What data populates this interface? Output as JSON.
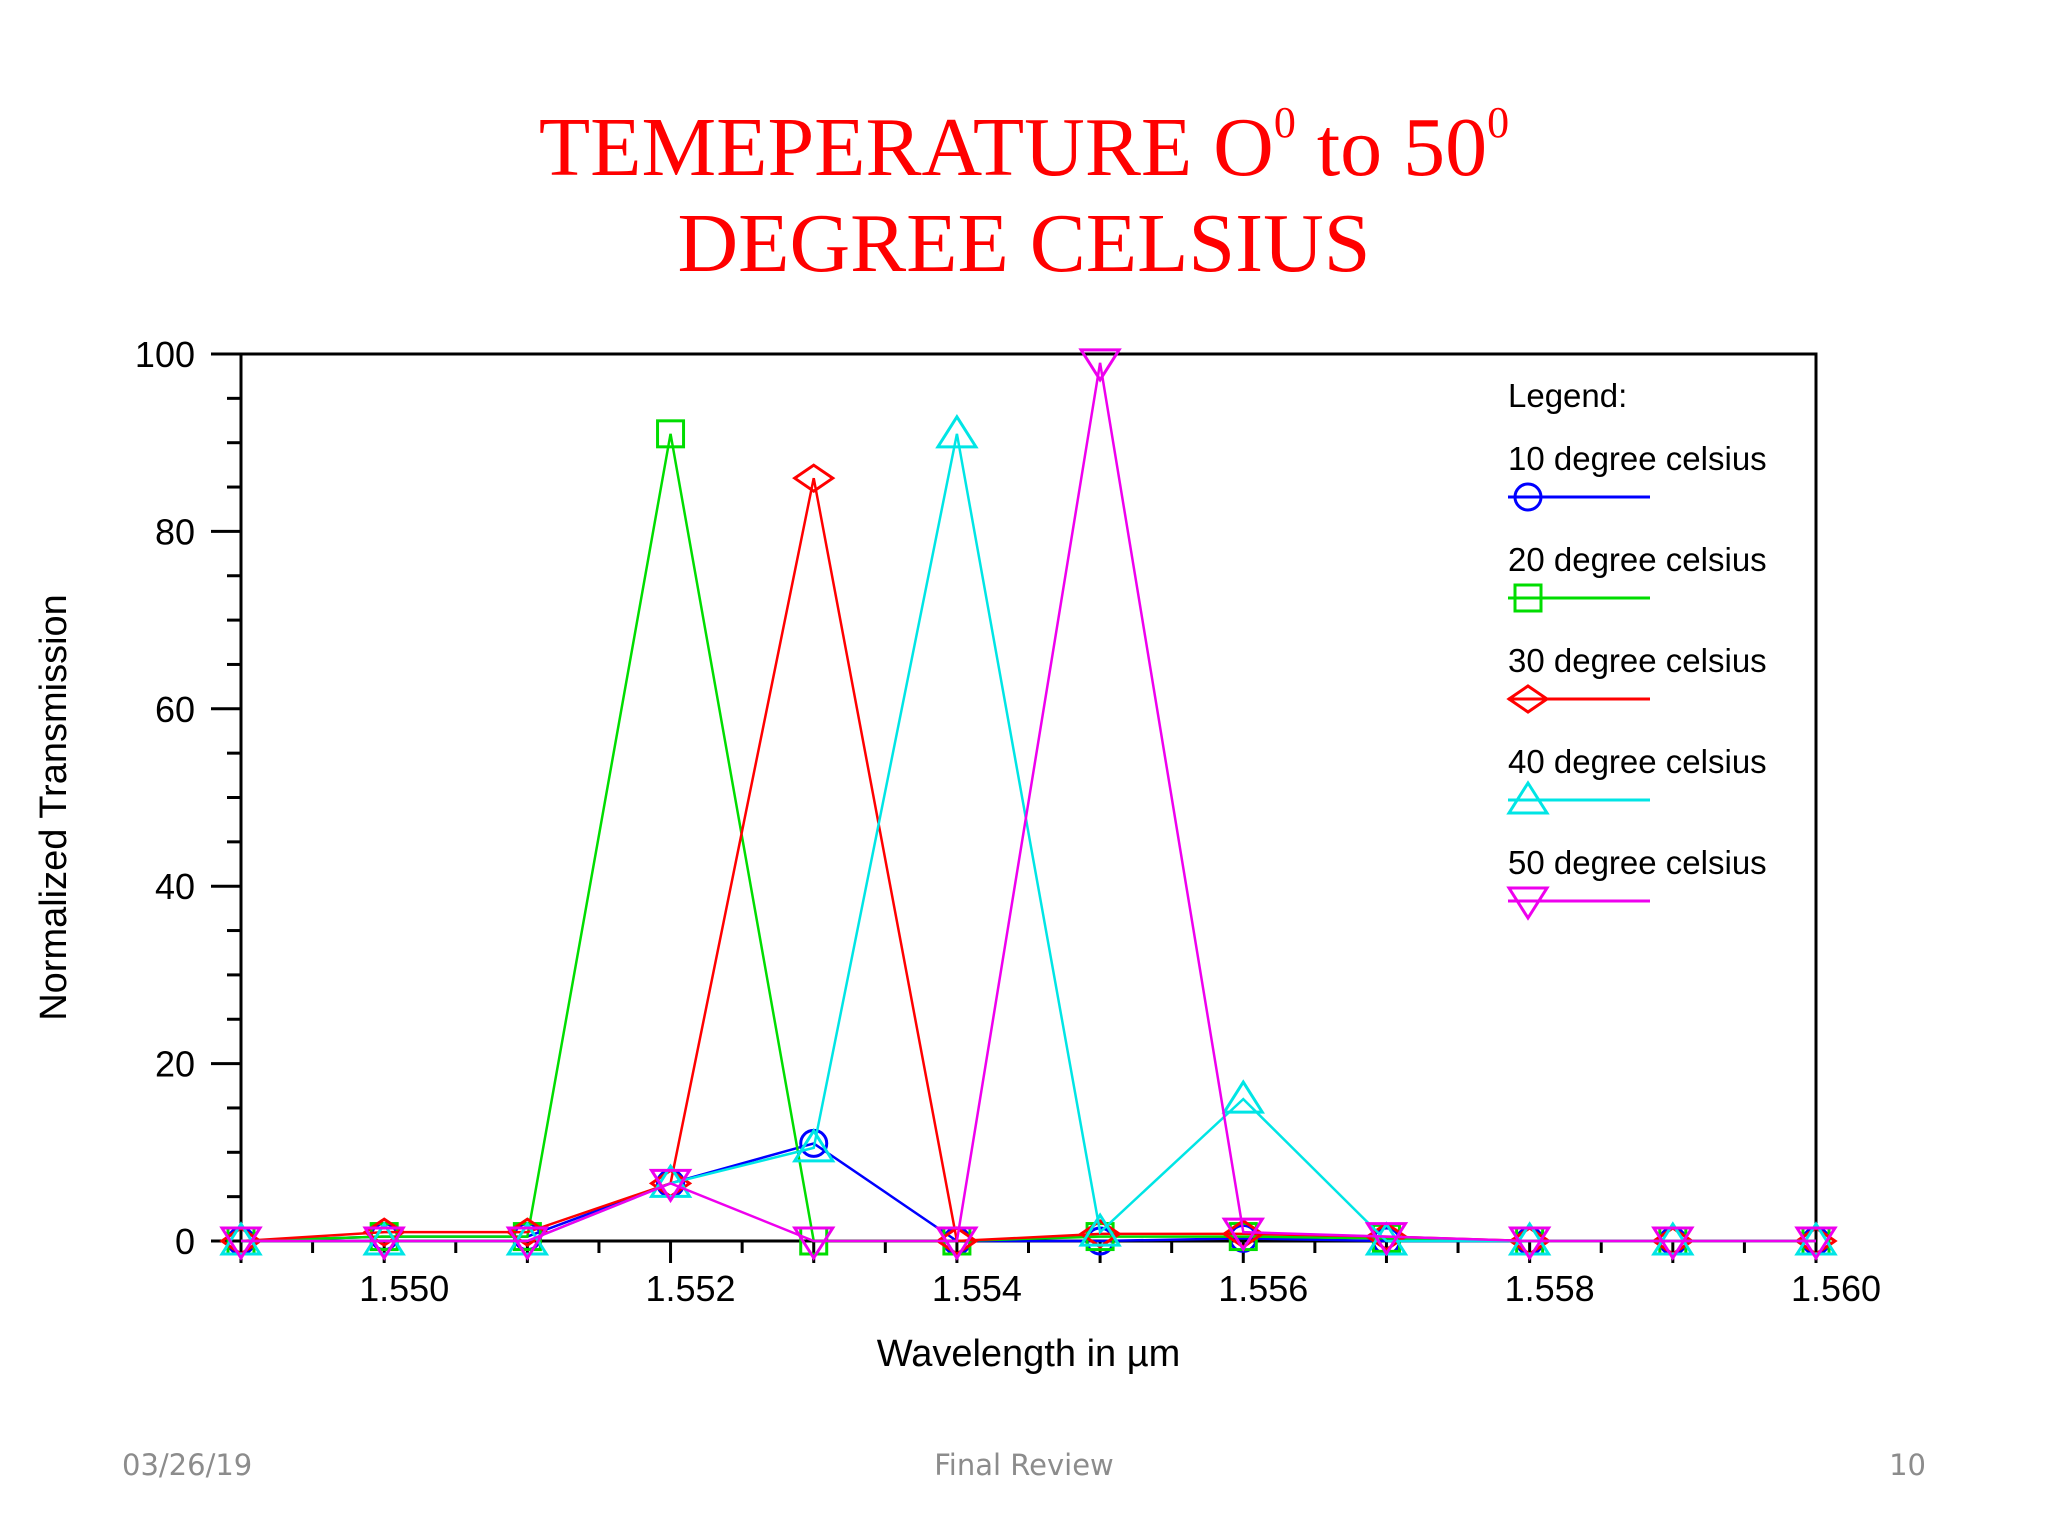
{
  "slide": {
    "title_line1_a": "TEMEPERATURE  O",
    "title_sup1": "0",
    "title_line1_b": " to 50",
    "title_sup2": "0",
    "title_line2": "DEGREE CELSIUS",
    "title_color": "#ff0000"
  },
  "footer": {
    "date": "03/26/19",
    "center": "Final Review",
    "page": "10"
  },
  "chart_data": {
    "type": "line",
    "xlabel": "Wavelength in µm",
    "ylabel": "Normalized Transmission",
    "xlim": [
      1.549,
      1.56
    ],
    "ylim": [
      0,
      100
    ],
    "x_ticks": [
      "1.550",
      "1.552",
      "1.554",
      "1.556",
      "1.558",
      "1.560"
    ],
    "y_ticks": [
      "0",
      "20",
      "40",
      "60",
      "80",
      "100"
    ],
    "legend_title": "Legend:",
    "legend_position": "top-right",
    "x": [
      1.549,
      1.55,
      1.551,
      1.552,
      1.553,
      1.554,
      1.555,
      1.556,
      1.557,
      1.558,
      1.559,
      1.56
    ],
    "series": [
      {
        "name": "10 degree celsius",
        "color": "#0000ff",
        "marker": "circle",
        "values": [
          0,
          0.5,
          0.5,
          6.5,
          11,
          0,
          0,
          0.3,
          0,
          0,
          0,
          0
        ]
      },
      {
        "name": "20 degree celsius",
        "color": "#00dd00",
        "marker": "square",
        "values": [
          0,
          0.5,
          0.5,
          91,
          0,
          0,
          0.5,
          0.5,
          0.3,
          0,
          0,
          0
        ]
      },
      {
        "name": "30 degree celsius",
        "color": "#ff0000",
        "marker": "diamond",
        "values": [
          0,
          1,
          1,
          6.5,
          86,
          0,
          0.8,
          0.8,
          0.5,
          0,
          0,
          0
        ]
      },
      {
        "name": "40 degree celsius",
        "color": "#00e5e5",
        "marker": "triangle-up",
        "values": [
          0,
          0,
          0,
          6.5,
          10.5,
          91,
          1,
          16,
          0,
          0,
          0,
          0
        ]
      },
      {
        "name": "50 degree celsius",
        "color": "#ee00ee",
        "marker": "triangle-down",
        "values": [
          0,
          0,
          0,
          6.5,
          0,
          0,
          99,
          1,
          0.5,
          0,
          0,
          0
        ]
      }
    ]
  }
}
